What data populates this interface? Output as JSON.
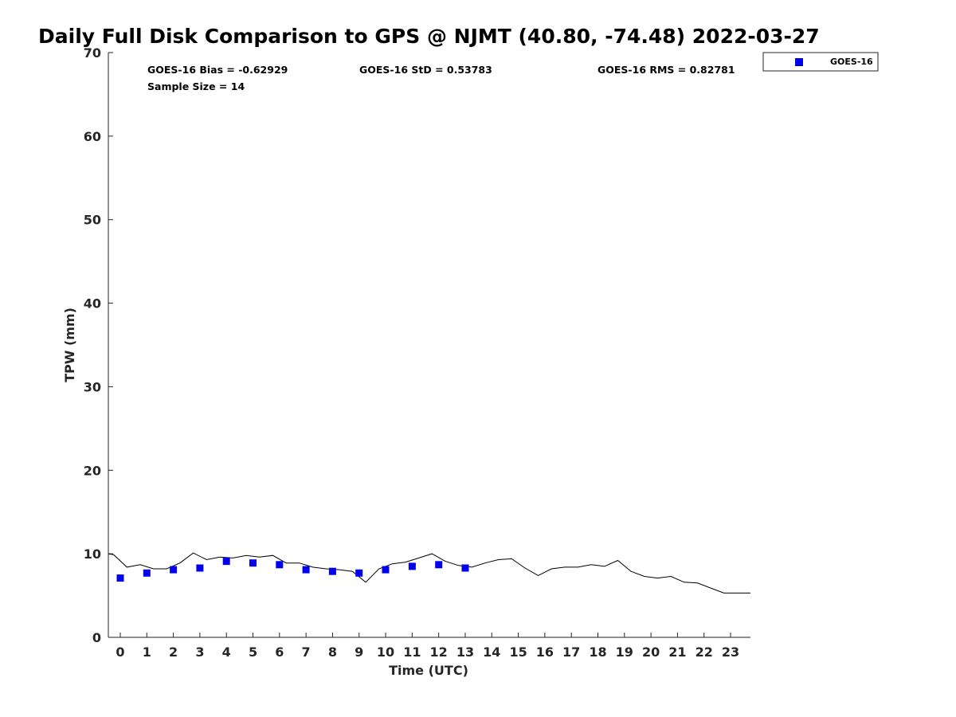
{
  "chart_data": {
    "type": "scatter",
    "title": "Daily Full Disk Comparison to GPS @ NJMT (40.80, -74.48) 2022-03-27",
    "xlabel": "Time (UTC)",
    "ylabel": "TPW (mm)",
    "xlim": [
      -0.45,
      23.75
    ],
    "ylim": [
      0,
      70
    ],
    "x_ticks": [
      "0",
      "1",
      "2",
      "3",
      "4",
      "5",
      "6",
      "7",
      "8",
      "9",
      "10",
      "11",
      "12",
      "13",
      "14",
      "15",
      "16",
      "17",
      "18",
      "19",
      "20",
      "21",
      "22",
      "23"
    ],
    "y_ticks": [
      "0",
      "10",
      "20",
      "30",
      "40",
      "50",
      "60",
      "70"
    ],
    "grid": false,
    "legend_position": "top-right (outside plot)",
    "stats": {
      "bias": "GOES-16 Bias = -0.62929",
      "std": "GOES-16 StD = 0.53783",
      "rms": "GOES-16 RMS = 0.82781",
      "sample": "Sample Size = 14"
    },
    "series": [
      {
        "name": "GOES-16",
        "kind": "markers",
        "marker": "square",
        "color": "#0000ee",
        "x": [
          0,
          1,
          2,
          3,
          4,
          5,
          6,
          7,
          8,
          9,
          10,
          11,
          12,
          13
        ],
        "y": [
          7.1,
          7.7,
          8.1,
          8.3,
          9.1,
          8.9,
          8.7,
          8.1,
          7.9,
          7.7,
          8.1,
          8.5,
          8.7,
          8.3
        ]
      },
      {
        "kind": "line",
        "color": "#000000",
        "x": [
          -0.45,
          -0.25,
          0.25,
          0.75,
          1.25,
          1.75,
          2.25,
          2.75,
          3.25,
          3.75,
          4.25,
          4.75,
          5.25,
          5.75,
          6.25,
          6.75,
          7.25,
          7.75,
          8.25,
          8.75,
          9.25,
          9.75,
          10.25,
          10.75,
          11.25,
          11.75,
          12.25,
          12.75,
          13.25,
          13.75,
          14.25,
          14.75,
          15.25,
          15.75,
          16.25,
          16.75,
          17.25,
          17.75,
          18.25,
          18.75,
          19.25,
          19.75,
          20.25,
          20.75,
          21.25,
          21.75,
          22.25,
          22.75,
          23.25,
          23.75
        ],
        "y": [
          10.0,
          9.9,
          8.4,
          8.7,
          8.2,
          8.2,
          8.9,
          10.1,
          9.3,
          9.6,
          9.5,
          9.8,
          9.6,
          9.8,
          8.9,
          8.9,
          8.4,
          8.2,
          8.1,
          7.9,
          6.6,
          8.2,
          8.8,
          9.0,
          9.5,
          10.0,
          9.1,
          8.6,
          8.4,
          8.9,
          9.3,
          9.4,
          8.3,
          7.4,
          8.2,
          8.4,
          8.4,
          8.7,
          8.5,
          9.2,
          7.9,
          7.3,
          7.1,
          7.3,
          6.6,
          6.5,
          5.9,
          5.3,
          5.3,
          5.3
        ]
      }
    ]
  }
}
